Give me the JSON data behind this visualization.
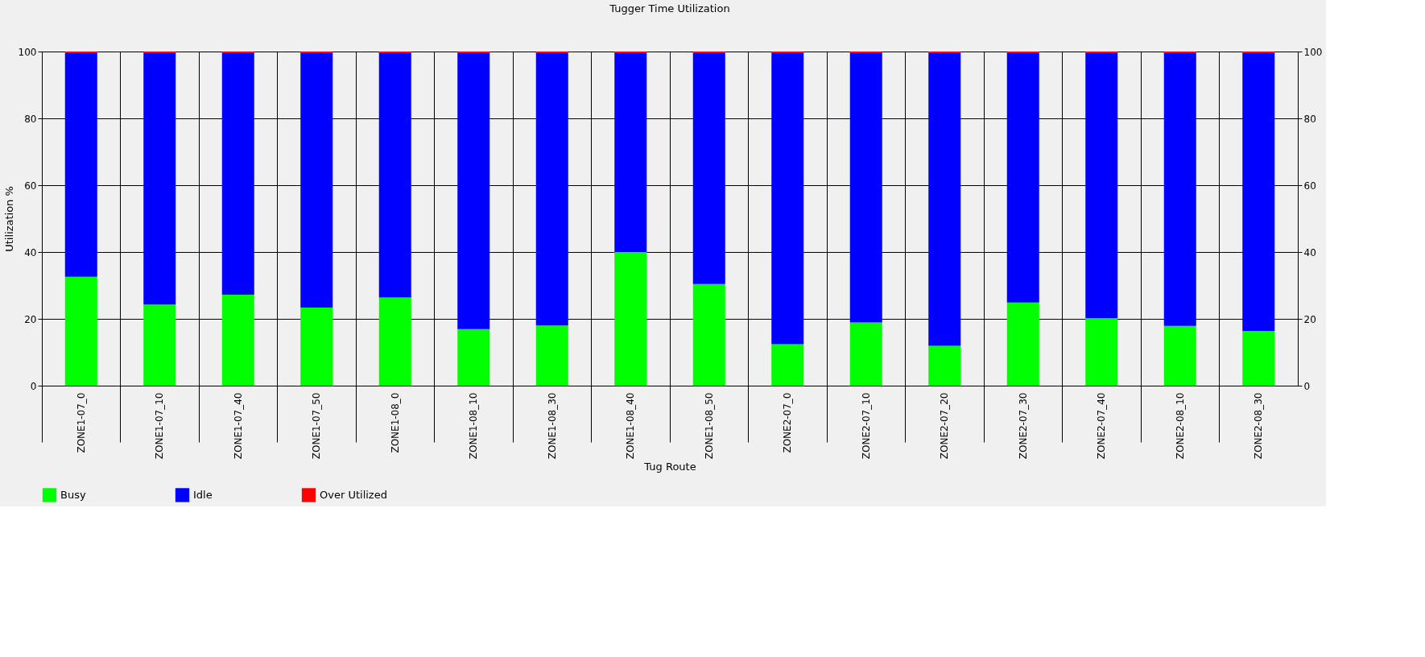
{
  "chart_data": {
    "type": "bar",
    "title": "Tugger Time Utilization",
    "xlabel": "Tug Route",
    "ylabel": "Utilization %",
    "categories": [
      "ZONE1-07_0",
      "ZONE1-07_10",
      "ZONE1-07_40",
      "ZONE1-07_50",
      "ZONE1-08_0",
      "ZONE1-08_10",
      "ZONE1-08_30",
      "ZONE1-08_40",
      "ZONE1-08_50",
      "ZONE2-07_0",
      "ZONE2-07_10",
      "ZONE2-07_20",
      "ZONE2-07_30",
      "ZONE2-07_40",
      "ZONE2-08_10",
      "ZONE2-08_30"
    ],
    "series": [
      {
        "name": "Busy",
        "color": "#00ff00",
        "values": [
          32.6,
          24.3,
          27.2,
          23.4,
          26.4,
          16.9,
          18.0,
          40.0,
          30.4,
          12.4,
          18.9,
          11.9,
          24.9,
          20.2,
          17.9,
          16.4
        ]
      },
      {
        "name": "Idle",
        "color": "#0000ff",
        "values": [
          67.1,
          75.4,
          72.5,
          76.3,
          73.3,
          82.8,
          81.7,
          59.7,
          69.3,
          87.3,
          80.8,
          87.8,
          74.8,
          79.5,
          81.8,
          83.3
        ]
      },
      {
        "name": "Over Utilized",
        "color": "#ff0000",
        "values": [
          0.3,
          0.3,
          0.3,
          0.3,
          0.3,
          0.3,
          0.3,
          0.3,
          0.3,
          0.3,
          0.3,
          0.3,
          0.3,
          0.3,
          0.3,
          0.3
        ]
      }
    ],
    "stacked": true,
    "ylim": [
      0,
      100
    ],
    "yticks": [
      0,
      20,
      40,
      60,
      80,
      100
    ],
    "y2lim": [
      0,
      100
    ],
    "y2ticks": [
      0,
      20,
      40,
      60,
      80,
      100
    ],
    "grid": true,
    "legend": "bottom"
  }
}
